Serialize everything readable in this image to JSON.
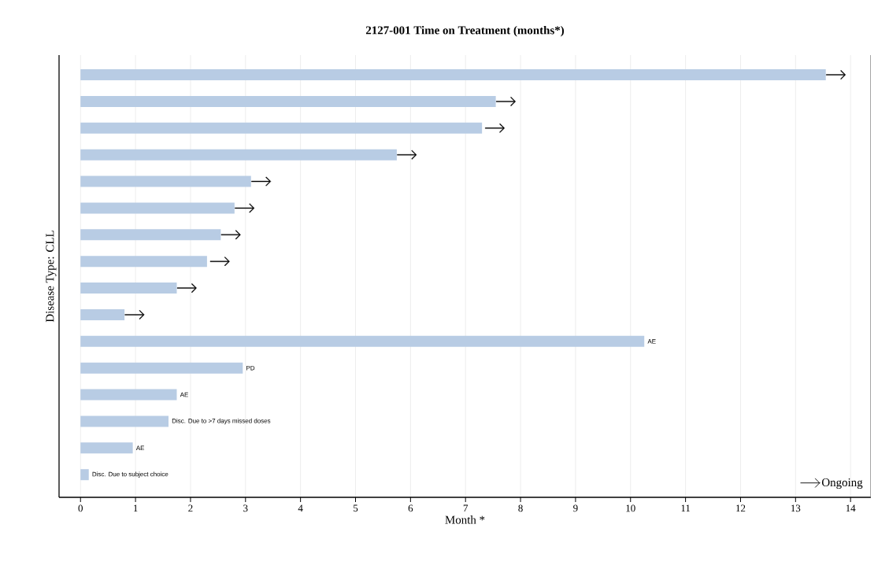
{
  "chart_data": {
    "type": "bar",
    "orientation": "horizontal",
    "title": "2127-001 Time on Treatment (months*)",
    "xlabel": "Month *",
    "ylabel": "Disease Type: CLL",
    "categories": [
      null,
      null,
      null,
      null,
      null,
      null,
      null,
      null,
      null,
      null,
      null,
      null,
      null,
      null,
      null,
      null
    ],
    "series": [
      {
        "color": "#b8cce4",
        "values": [
          13.55,
          7.55,
          7.3,
          5.75,
          3.1,
          2.8,
          2.55,
          2.3,
          1.75,
          0.8,
          10.25,
          2.95,
          1.75,
          1.6,
          0.95,
          0.15
        ],
        "value_labels": [
          null,
          null,
          null,
          null,
          null,
          null,
          null,
          null,
          null,
          null,
          "AE",
          "PD",
          "AE",
          "Disc. Due to >7 days missed doses",
          "AE",
          "Disc. Due to subject choice"
        ]
      },
      {
        "name": "Ongoing",
        "type": "scatter",
        "color": "#000000",
        "values": [
          13.73,
          7.73,
          7.53,
          5.93,
          3.28,
          2.98,
          2.73,
          2.53,
          1.93,
          0.98,
          null,
          null,
          null,
          null,
          null,
          null
        ]
      }
    ],
    "xlim": [
      -0.39,
      14.37
    ],
    "xticks": [
      0,
      1,
      2,
      3,
      4,
      5,
      6,
      7,
      8,
      9,
      10,
      11,
      12,
      13,
      14
    ],
    "grid": "x",
    "legend": "bottom right"
  }
}
